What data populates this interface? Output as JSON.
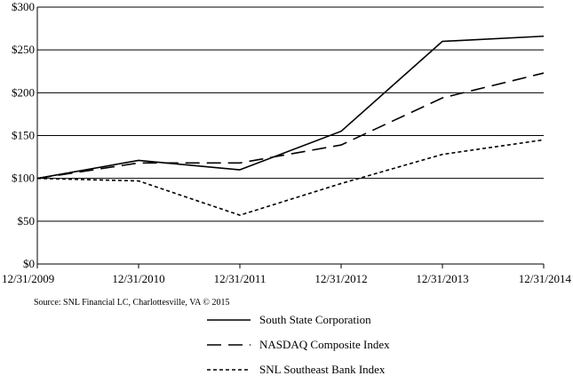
{
  "chart_data": {
    "type": "line",
    "categories": [
      "12/31/2009",
      "12/31/2010",
      "12/31/2011",
      "12/31/2012",
      "12/31/2013",
      "12/31/2014"
    ],
    "ylim": [
      0,
      300
    ],
    "yticks": [
      0,
      50,
      100,
      150,
      200,
      250,
      300
    ],
    "ytick_labels": [
      "$0",
      "$50",
      "$100",
      "$150",
      "$200",
      "$250",
      "$300"
    ],
    "grid": "horizontal",
    "legend_position": "bottom",
    "source": "Source: SNL Financial LC, Charlottesville, VA © 2015",
    "series": [
      {
        "name": "South State Corporation",
        "dash": "solid",
        "color": "#000000",
        "values": [
          100,
          121,
          110,
          155,
          260,
          266
        ]
      },
      {
        "name": "NASDAQ Composite Index",
        "dash": "long-dash",
        "color": "#000000",
        "values": [
          100,
          118,
          118,
          139,
          194,
          223
        ]
      },
      {
        "name": "SNL Southeast Bank Index",
        "dash": "short-dash",
        "color": "#000000",
        "values": [
          100,
          97,
          57,
          94,
          128,
          145
        ]
      }
    ]
  }
}
